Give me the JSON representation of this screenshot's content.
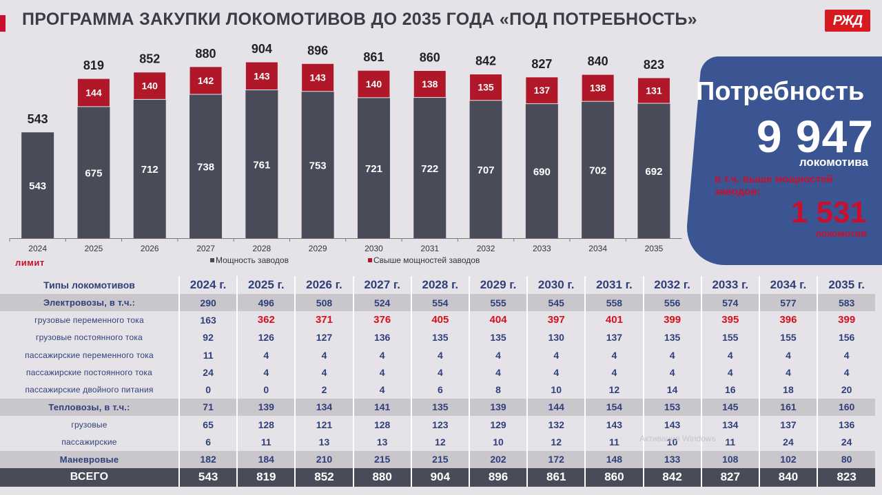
{
  "title": "ПРОГРАММА ЗАКУПКИ ЛОКОМОТИВОВ ДО 2035 ГОДА «ПОД ПОТРЕБНОСТЬ»",
  "logo_text": "РЖД",
  "colors": {
    "accent": "#c8102e",
    "capacity_bar": "#4a4b58",
    "excess_bar": "#b0182a",
    "card": "#3a5592",
    "table_text": "#2e3f7a",
    "highlight": "#d7101e"
  },
  "chart_data": {
    "type": "bar",
    "stacked": true,
    "categories": [
      "2024",
      "2025",
      "2026",
      "2027",
      "2028",
      "2029",
      "2030",
      "2031",
      "2032",
      "2033",
      "2034",
      "2035"
    ],
    "series": [
      {
        "name": "Мощность заводов",
        "values": [
          543,
          675,
          712,
          738,
          761,
          753,
          721,
          722,
          707,
          690,
          702,
          692
        ]
      },
      {
        "name": "Свыше мощностей заводов",
        "values": [
          0,
          144,
          140,
          142,
          143,
          143,
          140,
          138,
          135,
          137,
          138,
          131
        ]
      }
    ],
    "totals": [
      543,
      819,
      852,
      880,
      904,
      896,
      861,
      860,
      842,
      827,
      840,
      823
    ],
    "ylim": [
      0,
      950
    ],
    "legend_position": "bottom",
    "limit_label": "лимит"
  },
  "need": {
    "title": "Потребность",
    "value": "9 947",
    "unit": "локомотива",
    "sub": "в т.ч. выше мощностей заводов:",
    "excess": "1 531",
    "excess_unit": "локомотив"
  },
  "table": {
    "header_label": "Типы локомотивов",
    "years": [
      "2024 г.",
      "2025 г.",
      "2026 г.",
      "2027 г.",
      "2028 г.",
      "2029 г.",
      "2030 г.",
      "2031 г.",
      "2032 г.",
      "2033 г.",
      "2034 г.",
      "2035 г."
    ],
    "rows": [
      {
        "label": "Электровозы, в т.ч.:",
        "group": true,
        "values": [
          "290",
          "496",
          "508",
          "524",
          "554",
          "555",
          "545",
          "558",
          "556",
          "574",
          "577",
          "583"
        ]
      },
      {
        "label": "грузовые переменного тока",
        "values": [
          "163",
          "362",
          "371",
          "376",
          "405",
          "404",
          "397",
          "401",
          "399",
          "395",
          "396",
          "399"
        ],
        "highlight_from": 1
      },
      {
        "label": "грузовые постоянного тока",
        "values": [
          "92",
          "126",
          "127",
          "136",
          "135",
          "135",
          "130",
          "137",
          "135",
          "155",
          "155",
          "156"
        ]
      },
      {
        "label": "пассажирские переменного тока",
        "values": [
          "11",
          "4",
          "4",
          "4",
          "4",
          "4",
          "4",
          "4",
          "4",
          "4",
          "4",
          "4"
        ]
      },
      {
        "label": "пассажирские постоянного тока",
        "values": [
          "24",
          "4",
          "4",
          "4",
          "4",
          "4",
          "4",
          "4",
          "4",
          "4",
          "4",
          "4"
        ]
      },
      {
        "label": "пассажирские двойного питания",
        "values": [
          "0",
          "0",
          "2",
          "4",
          "6",
          "8",
          "10",
          "12",
          "14",
          "16",
          "18",
          "20"
        ]
      },
      {
        "label": "Тепловозы, в т.ч.:",
        "group": true,
        "values": [
          "71",
          "139",
          "134",
          "141",
          "135",
          "139",
          "144",
          "154",
          "153",
          "145",
          "161",
          "160"
        ]
      },
      {
        "label": "грузовые",
        "values": [
          "65",
          "128",
          "121",
          "128",
          "123",
          "129",
          "132",
          "143",
          "143",
          "134",
          "137",
          "136"
        ]
      },
      {
        "label": "пассажирские",
        "values": [
          "6",
          "11",
          "13",
          "13",
          "12",
          "10",
          "12",
          "11",
          "10",
          "11",
          "24",
          "24"
        ]
      },
      {
        "label": "Маневровые",
        "group": true,
        "values": [
          "182",
          "184",
          "210",
          "215",
          "215",
          "202",
          "172",
          "148",
          "133",
          "108",
          "102",
          "80"
        ]
      }
    ],
    "total": {
      "label": "ВСЕГО",
      "values": [
        "543",
        "819",
        "852",
        "880",
        "904",
        "896",
        "861",
        "860",
        "842",
        "827",
        "840",
        "823"
      ]
    }
  },
  "watermark": "Активация Windows"
}
